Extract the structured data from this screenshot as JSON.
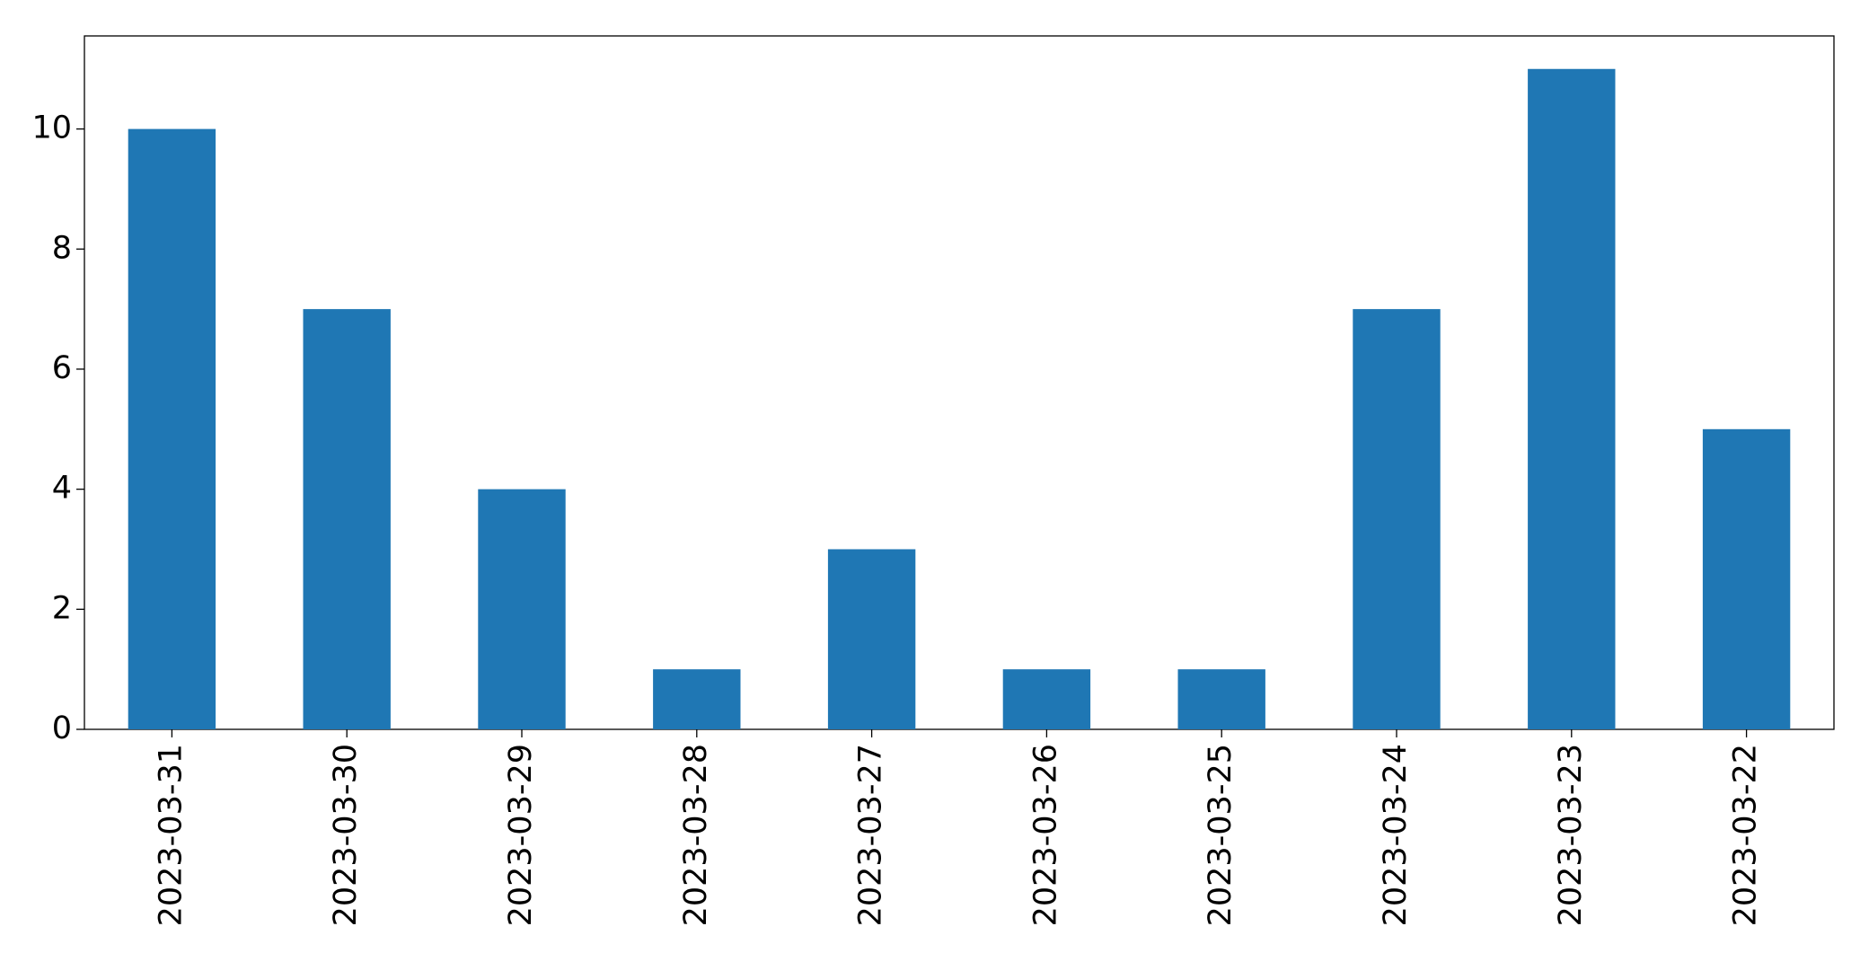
{
  "chart_data": {
    "type": "bar",
    "categories": [
      "2023-03-31",
      "2023-03-30",
      "2023-03-29",
      "2023-03-28",
      "2023-03-27",
      "2023-03-26",
      "2023-03-25",
      "2023-03-24",
      "2023-03-23",
      "2023-03-22"
    ],
    "values": [
      10,
      7,
      4,
      1,
      3,
      1,
      1,
      7,
      11,
      5
    ],
    "color": "#1f77b4",
    "ylim": [
      0,
      11.55
    ],
    "yticks": [
      0,
      2,
      4,
      6,
      8,
      10
    ],
    "grid": false
  }
}
